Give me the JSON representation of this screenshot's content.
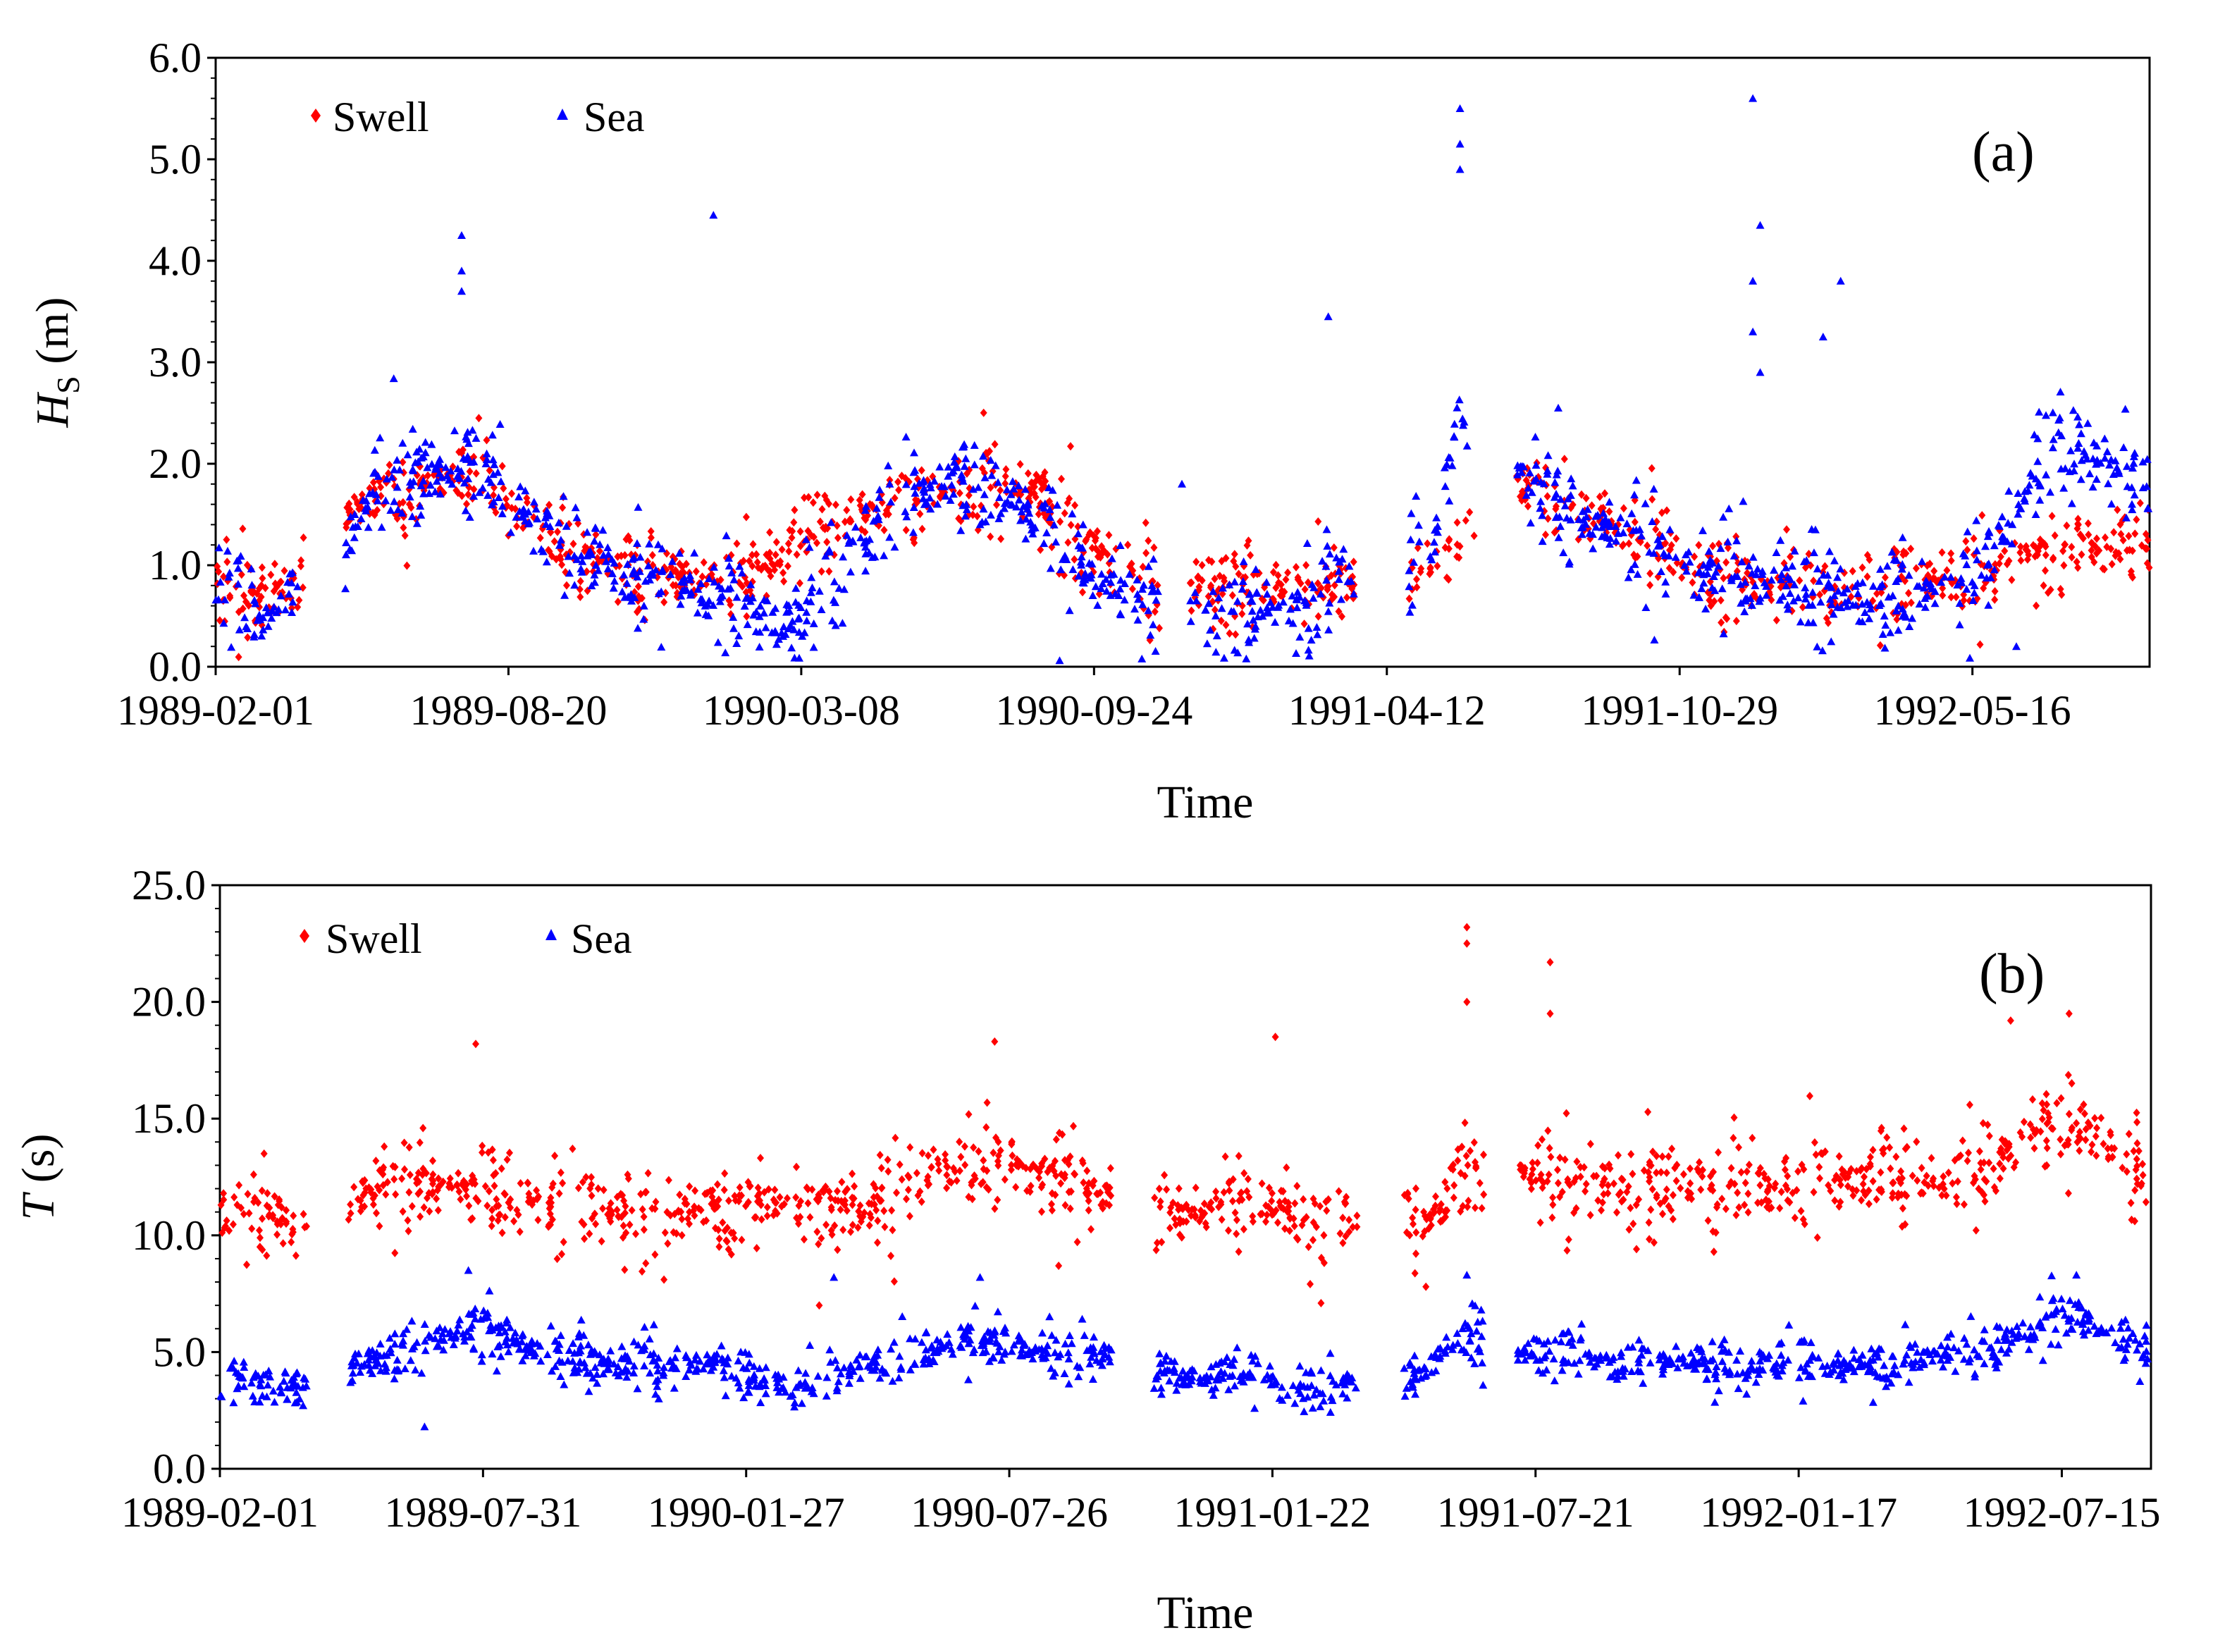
{
  "chart_data": [
    {
      "panel_label": "(a)",
      "type": "scatter",
      "xlabel": "Time",
      "ylabel_main": "H",
      "ylabel_sub": "S",
      "ylabel_unit": " (m)",
      "ylim": [
        0,
        6
      ],
      "yticks": [
        "0.0",
        "1.0",
        "2.0",
        "3.0",
        "4.0",
        "5.0",
        "6.0"
      ],
      "x_range_days": [
        0,
        1321
      ],
      "xticks": [
        "1989-02-01",
        "1989-08-20",
        "1990-03-08",
        "1990-09-24",
        "1991-04-12",
        "1991-10-29",
        "1992-05-16"
      ],
      "xtick_days": [
        0,
        200,
        400,
        600,
        800,
        1000,
        1200
      ],
      "legend_position": "top-left",
      "series": [
        {
          "name": "Swell",
          "marker": "diamond",
          "color": "#ff0000",
          "envelope": [
            [
              0,
              0.8
            ],
            [
              15,
              0.75
            ],
            [
              35,
              0.7
            ],
            [
              55,
              0.85
            ],
            [
              90,
              1.5
            ],
            [
              110,
              1.7
            ],
            [
              140,
              1.8
            ],
            [
              170,
              1.9
            ],
            [
              200,
              1.6
            ],
            [
              240,
              1.2
            ],
            [
              280,
              1.0
            ],
            [
              320,
              0.9
            ],
            [
              360,
              0.9
            ],
            [
              385,
              1.1
            ],
            [
              410,
              1.3
            ],
            [
              440,
              1.5
            ],
            [
              470,
              1.6
            ],
            [
              500,
              1.7
            ],
            [
              530,
              1.8
            ],
            [
              560,
              1.7
            ],
            [
              580,
              1.5
            ],
            [
              620,
              0.9
            ],
            [
              680,
              0.8
            ],
            [
              735,
              0.8
            ],
            [
              760,
              0.8
            ],
            [
              830,
              1.0
            ],
            [
              850,
              1.2
            ],
            [
              875,
              1.4
            ],
            [
              890,
              1.8
            ],
            [
              910,
              1.7
            ],
            [
              940,
              1.5
            ],
            [
              980,
              1.3
            ],
            [
              1010,
              0.9
            ],
            [
              1060,
              0.8
            ],
            [
              1100,
              0.7
            ],
            [
              1150,
              0.8
            ],
            [
              1200,
              0.9
            ],
            [
              1230,
              1.1
            ],
            [
              1260,
              1.2
            ],
            [
              1290,
              1.2
            ],
            [
              1321,
              1.3
            ]
          ],
          "gaps": [
            [
              60,
              88
            ],
            [
              645,
              665
            ],
            [
              778,
              815
            ],
            [
              860,
              888
            ]
          ],
          "spread": 0.35,
          "count": 1200
        },
        {
          "name": "Sea",
          "marker": "triangle",
          "color": "#0000ff",
          "envelope": [
            [
              0,
              0.8
            ],
            [
              15,
              0.6
            ],
            [
              35,
              0.5
            ],
            [
              55,
              0.8
            ],
            [
              90,
              1.2
            ],
            [
              110,
              1.8
            ],
            [
              140,
              1.9
            ],
            [
              170,
              2.0
            ],
            [
              200,
              1.6
            ],
            [
              240,
              1.2
            ],
            [
              280,
              0.9
            ],
            [
              320,
              0.8
            ],
            [
              360,
              0.6
            ],
            [
              385,
              0.4
            ],
            [
              410,
              0.6
            ],
            [
              440,
              1.2
            ],
            [
              470,
              1.7
            ],
            [
              500,
              1.8
            ],
            [
              530,
              1.7
            ],
            [
              560,
              1.5
            ],
            [
              580,
              1.2
            ],
            [
              620,
              0.7
            ],
            [
              680,
              0.6
            ],
            [
              735,
              0.6
            ],
            [
              760,
              0.9
            ],
            [
              830,
              1.0
            ],
            [
              850,
              2.7
            ],
            [
              860,
              1.5
            ],
            [
              875,
              1.6
            ],
            [
              890,
              1.9
            ],
            [
              910,
              1.6
            ],
            [
              940,
              1.4
            ],
            [
              980,
              1.3
            ],
            [
              1010,
              0.9
            ],
            [
              1060,
              0.9
            ],
            [
              1100,
              0.7
            ],
            [
              1150,
              0.7
            ],
            [
              1200,
              0.9
            ],
            [
              1230,
              1.5
            ],
            [
              1260,
              2.2
            ],
            [
              1290,
              2.0
            ],
            [
              1321,
              1.8
            ]
          ],
          "gaps": [
            [
              60,
              88
            ],
            [
              645,
              665
            ],
            [
              778,
              815
            ],
            [
              860,
              888
            ]
          ],
          "spread": 0.4,
          "count": 1200,
          "outliers": [
            [
              168,
              4.25
            ],
            [
              168,
              3.9
            ],
            [
              168,
              3.7
            ],
            [
              340,
              4.45
            ],
            [
              850,
              5.5
            ],
            [
              850,
              5.15
            ],
            [
              850,
              4.9
            ],
            [
              1050,
              5.6
            ],
            [
              1055,
              4.35
            ],
            [
              1050,
              3.8
            ],
            [
              1050,
              3.3
            ],
            [
              1055,
              2.9
            ],
            [
              1110,
              3.8
            ],
            [
              1098,
              3.25
            ],
            [
              760,
              3.45
            ],
            [
              660,
              1.8
            ],
            [
              1230,
              0.2
            ]
          ]
        }
      ]
    },
    {
      "panel_label": "(b)",
      "type": "scatter",
      "xlabel": "Time",
      "ylabel_main": "T",
      "ylabel_unit": " (s)",
      "ylim": [
        0,
        25
      ],
      "yticks": [
        "0.0",
        "5.0",
        "10.0",
        "15.0",
        "20.0",
        "25.0"
      ],
      "x_range_days": [
        0,
        1321
      ],
      "xticks": [
        "1989-02-01",
        "1989-07-31",
        "1990-01-27",
        "1990-07-26",
        "1991-01-22",
        "1991-07-21",
        "1992-01-17",
        "1992-07-15"
      ],
      "xtick_days": [
        0,
        180,
        360,
        540,
        720,
        900,
        1080,
        1260
      ],
      "legend_position": "top-left",
      "series": [
        {
          "name": "Swell",
          "marker": "diamond",
          "color": "#ff0000",
          "envelope": [
            [
              0,
              11.0
            ],
            [
              30,
              11.0
            ],
            [
              50,
              10.5
            ],
            [
              90,
              11.5
            ],
            [
              130,
              12.5
            ],
            [
              170,
              12.0
            ],
            [
              220,
              11.5
            ],
            [
              270,
              11.0
            ],
            [
              320,
              11.0
            ],
            [
              360,
              11.0
            ],
            [
              400,
              11.5
            ],
            [
              440,
              11.0
            ],
            [
              480,
              12.5
            ],
            [
              520,
              13.0
            ],
            [
              560,
              12.5
            ],
            [
              600,
              12.0
            ],
            [
              640,
              11.5
            ],
            [
              660,
              11.0
            ],
            [
              700,
              11.5
            ],
            [
              740,
              11.0
            ],
            [
              820,
              10.5
            ],
            [
              840,
              11.5
            ],
            [
              850,
              13.5
            ],
            [
              880,
              12.5
            ],
            [
              920,
              12.5
            ],
            [
              960,
              12.0
            ],
            [
              1000,
              12.0
            ],
            [
              1060,
              12.0
            ],
            [
              1100,
              12.5
            ],
            [
              1140,
              12.5
            ],
            [
              1180,
              12.5
            ],
            [
              1220,
              13.0
            ],
            [
              1240,
              14.5
            ],
            [
              1270,
              14.5
            ],
            [
              1300,
              13.5
            ],
            [
              1321,
              13.0
            ]
          ],
          "gaps": [
            [
              60,
              88
            ],
            [
              610,
              638
            ],
            [
              778,
              810
            ],
            [
              865,
              888
            ]
          ],
          "spread": 1.6,
          "count": 1300,
          "outliers": [
            [
              853,
              23.2
            ],
            [
              853,
              22.5
            ],
            [
              853,
              20.0
            ],
            [
              910,
              21.7
            ],
            [
              910,
              19.5
            ],
            [
              722,
              18.5
            ],
            [
              530,
              18.3
            ],
            [
              175,
              18.2
            ],
            [
              1265,
              19.5
            ],
            [
              1225,
              19.2
            ],
            [
              410,
              7.0
            ],
            [
              825,
              7.8
            ]
          ]
        },
        {
          "name": "Sea",
          "marker": "triangle",
          "color": "#0000ff",
          "envelope": [
            [
              0,
              4.0
            ],
            [
              30,
              3.5
            ],
            [
              50,
              3.5
            ],
            [
              90,
              4.5
            ],
            [
              130,
              5.0
            ],
            [
              170,
              6.0
            ],
            [
              220,
              5.0
            ],
            [
              270,
              4.5
            ],
            [
              320,
              4.5
            ],
            [
              360,
              4.0
            ],
            [
              400,
              3.5
            ],
            [
              440,
              4.5
            ],
            [
              480,
              5.0
            ],
            [
              520,
              5.5
            ],
            [
              560,
              5.0
            ],
            [
              600,
              5.0
            ],
            [
              640,
              4.0
            ],
            [
              700,
              4.0
            ],
            [
              740,
              3.5
            ],
            [
              820,
              4.0
            ],
            [
              850,
              6.0
            ],
            [
              880,
              5.0
            ],
            [
              920,
              5.0
            ],
            [
              960,
              4.5
            ],
            [
              1000,
              4.5
            ],
            [
              1060,
              4.5
            ],
            [
              1100,
              4.5
            ],
            [
              1140,
              4.5
            ],
            [
              1180,
              5.0
            ],
            [
              1220,
              5.5
            ],
            [
              1240,
              6.0
            ],
            [
              1270,
              6.5
            ],
            [
              1300,
              5.5
            ],
            [
              1321,
              5.5
            ]
          ],
          "gaps": [
            [
              60,
              88
            ],
            [
              610,
              638
            ],
            [
              778,
              810
            ],
            [
              865,
              888
            ]
          ],
          "spread": 0.9,
          "count": 1300,
          "outliers": [
            [
              140,
              1.8
            ],
            [
              170,
              8.5
            ],
            [
              420,
              8.2
            ],
            [
              520,
              8.2
            ],
            [
              853,
              8.3
            ],
            [
              1270,
              8.3
            ]
          ]
        }
      ]
    }
  ]
}
